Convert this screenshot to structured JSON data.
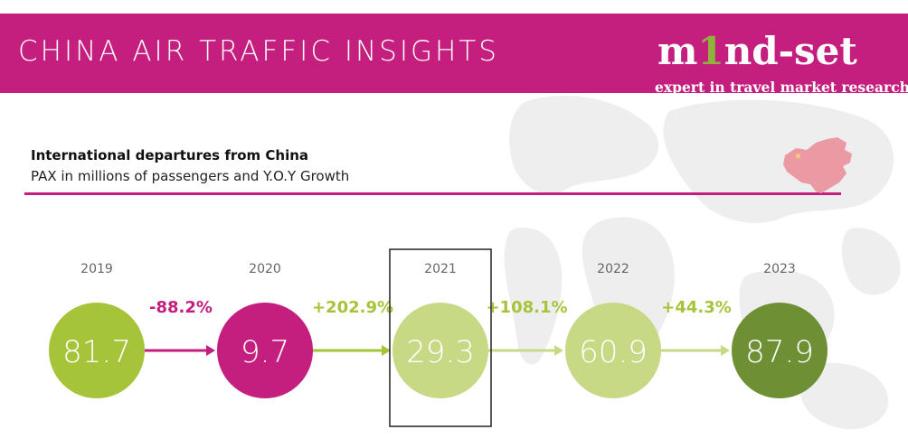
{
  "header": {
    "title": "CHINA AIR TRAFFIC INSIGHTS",
    "logo_text_before": "m",
    "logo_text_accent": "1",
    "logo_text_after": "nd-set",
    "logo_tagline": "expert in travel market research"
  },
  "colors": {
    "brand_magenta": "#c41f7f",
    "green_light": "#a6c43a",
    "green_pale": "#c8d985",
    "green_dark": "#6e8f34",
    "map_grey": "#eeeeee"
  },
  "chart_data": {
    "type": "infographic",
    "title": "International departures from China",
    "subtitle": "PAX in millions of passengers and Y.O.Y Growth",
    "categories": [
      "2019",
      "2020",
      "2021",
      "2022",
      "2023"
    ],
    "values": [
      81.7,
      9.7,
      29.3,
      60.9,
      87.9
    ],
    "value_labels": [
      "81.7",
      "9.7",
      "29.3",
      "60.9",
      "87.9"
    ],
    "growth": [
      "-88.2%",
      "+202.9%",
      "+108.1%",
      "+44.3%"
    ],
    "highlighted_year": "2021",
    "circle_colors": [
      "#a6c43a",
      "#c41f7f",
      "#c8d985",
      "#c8d985",
      "#6e8f34"
    ],
    "growth_colors": [
      "#c41f7f",
      "#a6c43a",
      "#a6c43a",
      "#a6c43a"
    ],
    "arrow_colors": [
      "#c41f7f",
      "#a6c43a",
      "#c8d985",
      "#c8d985"
    ]
  }
}
